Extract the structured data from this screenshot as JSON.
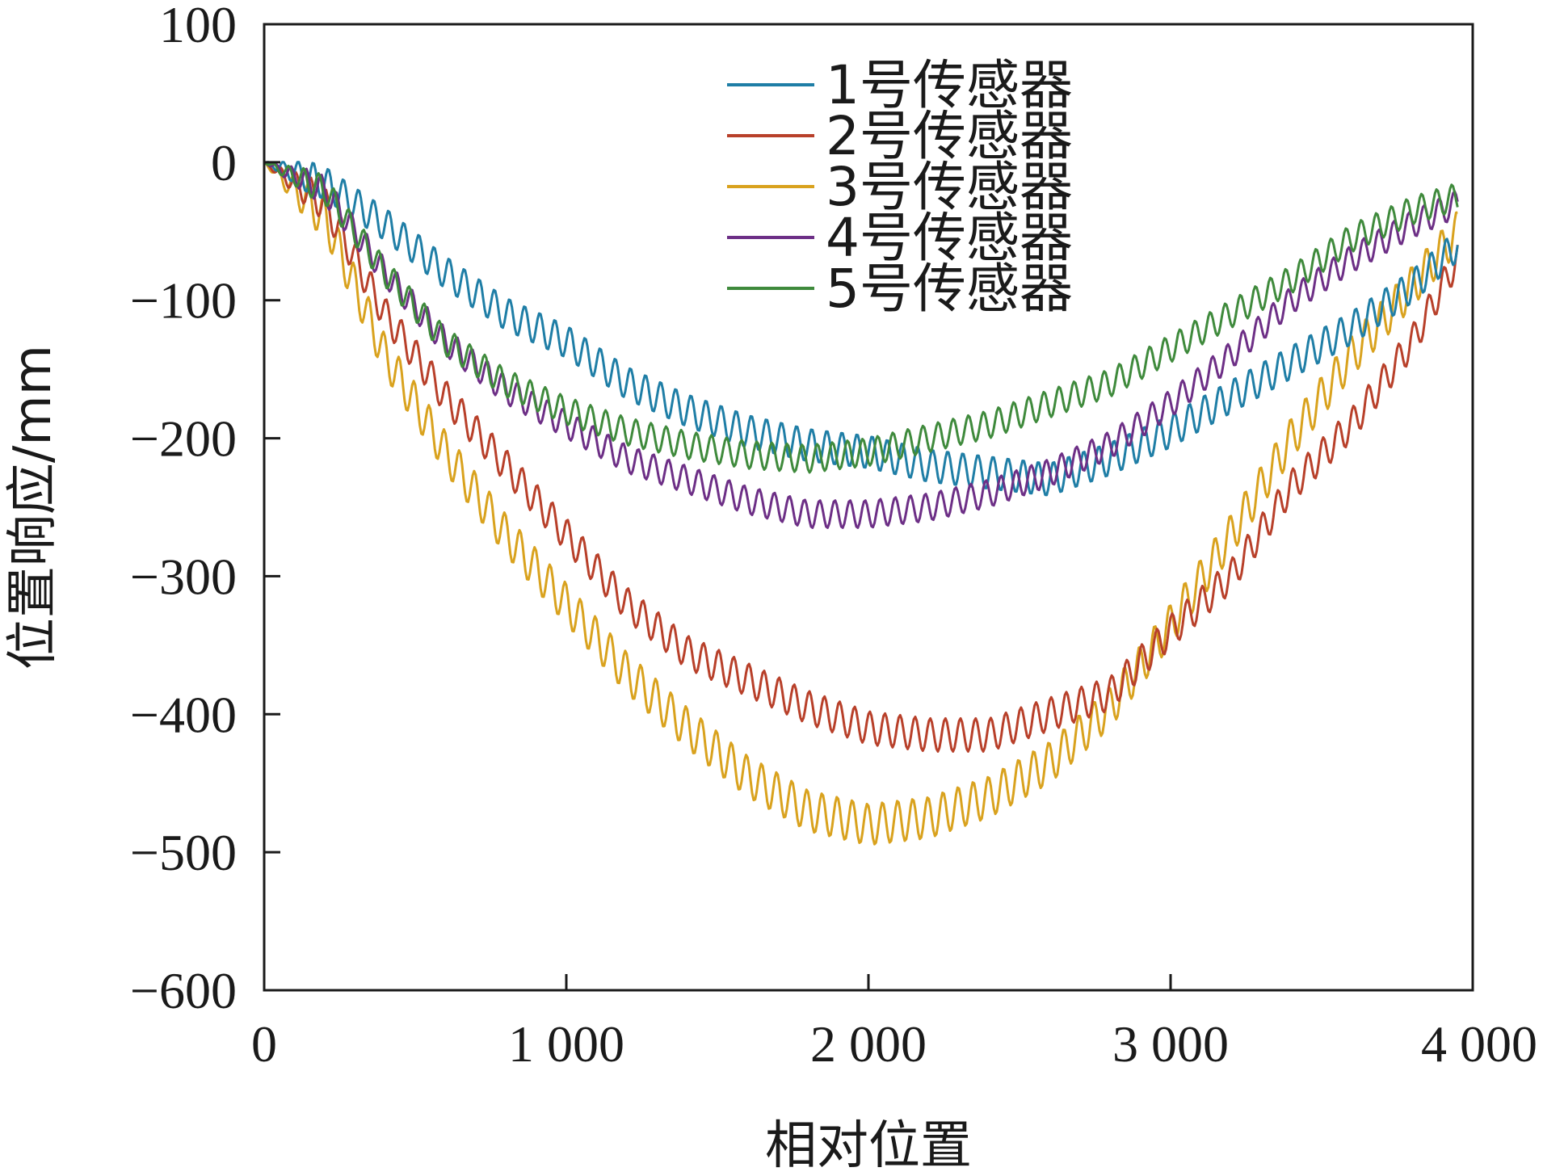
{
  "chart_data": {
    "type": "line",
    "title": "",
    "xlabel": "相对位置",
    "ylabel": "位置响应/mm",
    "xlim": [
      0,
      4000
    ],
    "ylim": [
      -600,
      100
    ],
    "xticks": [
      0,
      1000,
      2000,
      3000,
      4000
    ],
    "xtick_labels": [
      "0",
      "1 000",
      "2 000",
      "3 000",
      "4 000"
    ],
    "yticks": [
      100,
      0,
      -100,
      -200,
      -300,
      -400,
      -500,
      -600
    ],
    "ytick_labels": [
      "100",
      "0",
      "−100",
      "−200",
      "−300",
      "−400",
      "−500",
      "−600"
    ],
    "grid": false,
    "legend_position": "top-center",
    "series": [
      {
        "name": "1号传感器",
        "color": "#1f7ea6",
        "oscillation_amplitude": 12,
        "oscillation_period": 50,
        "x": [
          0,
          200,
          400,
          600,
          800,
          1000,
          1200,
          1400,
          1600,
          1800,
          2000,
          2200,
          2400,
          2600,
          2800,
          3000,
          3200,
          3400,
          3600,
          3800,
          3950
        ],
        "y": [
          0,
          -15,
          -45,
          -80,
          -110,
          -130,
          -160,
          -180,
          -195,
          -205,
          -210,
          -220,
          -225,
          -230,
          -215,
          -195,
          -170,
          -145,
          -120,
          -90,
          -60
        ]
      },
      {
        "name": "2号传感器",
        "color": "#b8402a",
        "oscillation_amplitude": 12,
        "oscillation_period": 50,
        "x": [
          0,
          200,
          400,
          600,
          800,
          1000,
          1200,
          1400,
          1600,
          1800,
          2000,
          2200,
          2400,
          2600,
          2800,
          3000,
          3200,
          3400,
          3600,
          3800,
          3950
        ],
        "y": [
          0,
          -30,
          -110,
          -170,
          -220,
          -270,
          -320,
          -355,
          -375,
          -395,
          -410,
          -415,
          -415,
          -400,
          -385,
          -340,
          -300,
          -235,
          -190,
          -130,
          -70
        ]
      },
      {
        "name": "3号传感器",
        "color": "#d9a21e",
        "oscillation_amplitude": 15,
        "oscillation_period": 50,
        "x": [
          0,
          200,
          400,
          600,
          800,
          1000,
          1200,
          1400,
          1600,
          1800,
          2000,
          2200,
          2400,
          2600,
          2800,
          3000,
          3200,
          3400,
          3600,
          3800,
          3950
        ],
        "y": [
          0,
          -40,
          -140,
          -210,
          -270,
          -320,
          -370,
          -410,
          -445,
          -470,
          -480,
          -475,
          -460,
          -435,
          -395,
          -335,
          -270,
          -200,
          -140,
          -90,
          -50
        ]
      },
      {
        "name": "4号传感器",
        "color": "#6d2f86",
        "oscillation_amplitude": 10,
        "oscillation_period": 50,
        "x": [
          0,
          200,
          400,
          600,
          800,
          1000,
          1200,
          1400,
          1600,
          1800,
          2000,
          2200,
          2400,
          2600,
          2800,
          3000,
          3200,
          3400,
          3600,
          3800,
          3950
        ],
        "y": [
          0,
          -20,
          -80,
          -130,
          -165,
          -190,
          -215,
          -230,
          -245,
          -255,
          -255,
          -250,
          -240,
          -225,
          -205,
          -175,
          -140,
          -100,
          -70,
          -45,
          -30
        ]
      },
      {
        "name": "5号传感器",
        "color": "#3f8a3c",
        "oscillation_amplitude": 10,
        "oscillation_period": 50,
        "x": [
          0,
          200,
          400,
          600,
          800,
          1000,
          1200,
          1400,
          1600,
          1800,
          2000,
          2200,
          2400,
          2600,
          2800,
          3000,
          3200,
          3400,
          3600,
          3800,
          3950
        ],
        "y": [
          0,
          -20,
          -80,
          -130,
          -160,
          -180,
          -195,
          -205,
          -212,
          -215,
          -210,
          -200,
          -190,
          -175,
          -160,
          -135,
          -110,
          -85,
          -55,
          -35,
          -25
        ]
      }
    ]
  }
}
